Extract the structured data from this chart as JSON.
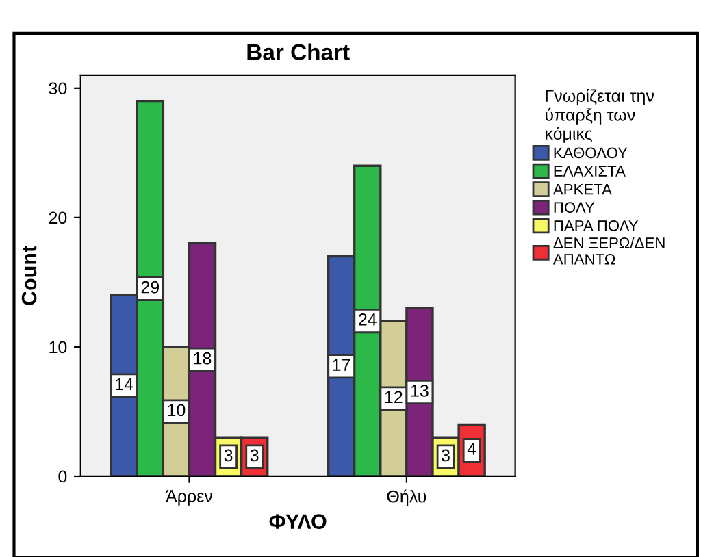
{
  "chart_data": {
    "type": "bar",
    "title": "Bar Chart",
    "xlabel": "ΦΥΛΟ",
    "ylabel": "Count",
    "legend_title": "Γνωρίζεται την\nύπαρξη των\nκόμικς",
    "categories": [
      "Άρρεν",
      "Θήλυ"
    ],
    "series": [
      {
        "name": "ΚΑΘΟΛΟΥ",
        "color": "#3c58a8",
        "values": [
          14,
          17
        ]
      },
      {
        "name": "ΕΛΑΧΙΣΤΑ",
        "color": "#2db84a",
        "values": [
          29,
          24
        ]
      },
      {
        "name": "ΑΡΚΕΤΑ",
        "color": "#d3ce98",
        "values": [
          10,
          12
        ]
      },
      {
        "name": "ΠΟΛΥ",
        "color": "#7b2479",
        "values": [
          18,
          13
        ]
      },
      {
        "name": "ΠΑΡΑ ΠΟΛΥ",
        "color": "#f8f766",
        "values": [
          3,
          3
        ]
      },
      {
        "name": "ΔΕΝ ΞΕΡΩ/ΔΕΝ\nΑΠΑΝΤΩ",
        "color": "#ee2f36",
        "values": [
          3,
          4
        ]
      }
    ],
    "ylim": [
      0,
      31
    ],
    "yticks": [
      0,
      10,
      20,
      30
    ],
    "grid": false,
    "legend": "right",
    "data_labels": true
  }
}
